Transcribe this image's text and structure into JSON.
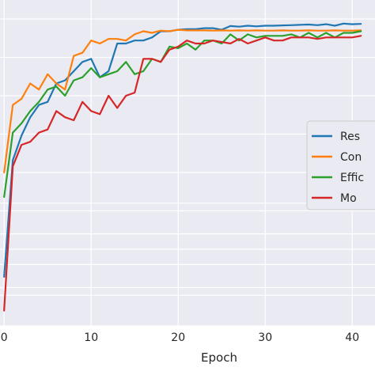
{
  "chart_data": {
    "type": "line",
    "xlabel": "Epoch",
    "ylabel": "",
    "x_ticks": [
      0,
      10,
      20,
      30,
      40
    ],
    "xlim": [
      -0.2,
      41.6
    ],
    "ylim": [
      0,
      1
    ],
    "grid": true,
    "legend_position": "center-right",
    "series": [
      {
        "name": "Res",
        "color": "#1f77b4",
        "values": [
          0.16,
          0.54,
          0.62,
          0.68,
          0.72,
          0.73,
          0.79,
          0.8,
          0.83,
          0.86,
          0.87,
          0.81,
          0.83,
          0.92,
          0.92,
          0.93,
          0.93,
          0.94,
          0.96,
          0.96,
          0.965,
          0.967,
          0.967,
          0.97,
          0.97,
          0.965,
          0.977,
          0.975,
          0.978,
          0.976,
          0.978,
          0.978,
          0.979,
          0.98,
          0.981,
          0.982,
          0.98,
          0.983,
          0.978,
          0.985,
          0.983,
          0.984
        ]
      },
      {
        "name": "Con",
        "color": "#ff7f0e",
        "values": [
          0.5,
          0.72,
          0.74,
          0.79,
          0.77,
          0.82,
          0.79,
          0.77,
          0.88,
          0.89,
          0.93,
          0.92,
          0.935,
          0.935,
          0.93,
          0.95,
          0.96,
          0.955,
          0.962,
          0.96,
          0.965,
          0.963,
          0.963,
          0.963,
          0.962,
          0.963,
          0.962,
          0.963,
          0.962,
          0.963,
          0.962,
          0.962,
          0.963,
          0.962,
          0.962,
          0.963,
          0.962,
          0.962,
          0.963,
          0.962,
          0.962,
          0.963
        ]
      },
      {
        "name": "Effic",
        "color": "#2ca02c",
        "values": [
          0.42,
          0.63,
          0.66,
          0.7,
          0.73,
          0.77,
          0.78,
          0.75,
          0.8,
          0.81,
          0.84,
          0.81,
          0.82,
          0.83,
          0.86,
          0.82,
          0.83,
          0.87,
          0.86,
          0.91,
          0.905,
          0.92,
          0.9,
          0.93,
          0.93,
          0.92,
          0.95,
          0.93,
          0.95,
          0.94,
          0.945,
          0.945,
          0.945,
          0.95,
          0.94,
          0.955,
          0.94,
          0.955,
          0.94,
          0.955,
          0.955,
          0.96
        ]
      },
      {
        "name": "Mo",
        "color": "#d62728",
        "values": [
          0.05,
          0.52,
          0.59,
          0.6,
          0.63,
          0.64,
          0.7,
          0.68,
          0.67,
          0.73,
          0.7,
          0.69,
          0.75,
          0.71,
          0.75,
          0.76,
          0.87,
          0.87,
          0.86,
          0.9,
          0.91,
          0.93,
          0.92,
          0.92,
          0.93,
          0.925,
          0.92,
          0.935,
          0.92,
          0.93,
          0.94,
          0.93,
          0.93,
          0.94,
          0.94,
          0.94,
          0.935,
          0.94,
          0.94,
          0.94,
          0.94,
          0.945
        ]
      }
    ]
  }
}
